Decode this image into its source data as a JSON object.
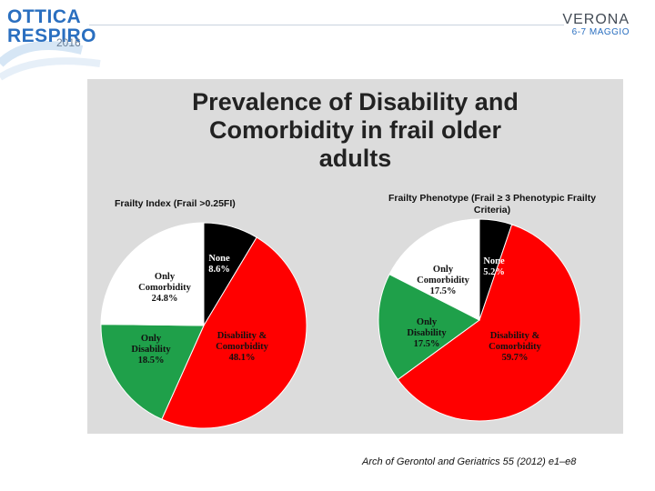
{
  "header": {
    "logo_line1": "OTTICA",
    "logo_line2": "RESPIRO",
    "logo_year": "2016",
    "city": "VERONA",
    "dates": "6-7 MAGGIO"
  },
  "slide": {
    "title_line1": "Prevalence of Disability and",
    "title_line2": "Comorbidity in frail older",
    "title_line3": "adults"
  },
  "citation": "Arch of Gerontol and Geriatrics 55 (2012) e1–e8",
  "colors": {
    "none": "#000000",
    "disability_comorbidity": "#ff0000",
    "only_disability": "#1fa04a",
    "only_comorbidity": "#ffffff",
    "panel": "#dcdcdc"
  },
  "chart_data": [
    {
      "type": "pie",
      "title": "Frailty Index (Frail >0.25FI)",
      "slices": [
        {
          "key": "none",
          "label_lines": [
            "None",
            "8.6%"
          ],
          "value": 8.6
        },
        {
          "key": "disability_comorbidity",
          "label_lines": [
            "Disability &",
            "Comorbidity",
            "48.1%"
          ],
          "value": 48.1
        },
        {
          "key": "only_disability",
          "label_lines": [
            "Only",
            "Disability",
            "18.5%"
          ],
          "value": 18.5
        },
        {
          "key": "only_comorbidity",
          "label_lines": [
            "Only",
            "Comorbidity",
            "24.8%"
          ],
          "value": 24.8
        }
      ]
    },
    {
      "type": "pie",
      "title_lines": [
        "Frailty Phenotype (Frail ≥ 3 Phenotypic Frailty",
        "Criteria)"
      ],
      "slices": [
        {
          "key": "none",
          "label_lines": [
            "None",
            "5.2%"
          ],
          "value": 5.2
        },
        {
          "key": "disability_comorbidity",
          "label_lines": [
            "Disability &",
            "Comorbidity",
            "59.7%"
          ],
          "value": 59.7
        },
        {
          "key": "only_disability",
          "label_lines": [
            "Only",
            "Disability",
            "17.5%"
          ],
          "value": 17.5
        },
        {
          "key": "only_comorbidity",
          "label_lines": [
            "Only",
            "Comorbidity",
            "17.5%"
          ],
          "value": 17.5
        }
      ]
    }
  ]
}
